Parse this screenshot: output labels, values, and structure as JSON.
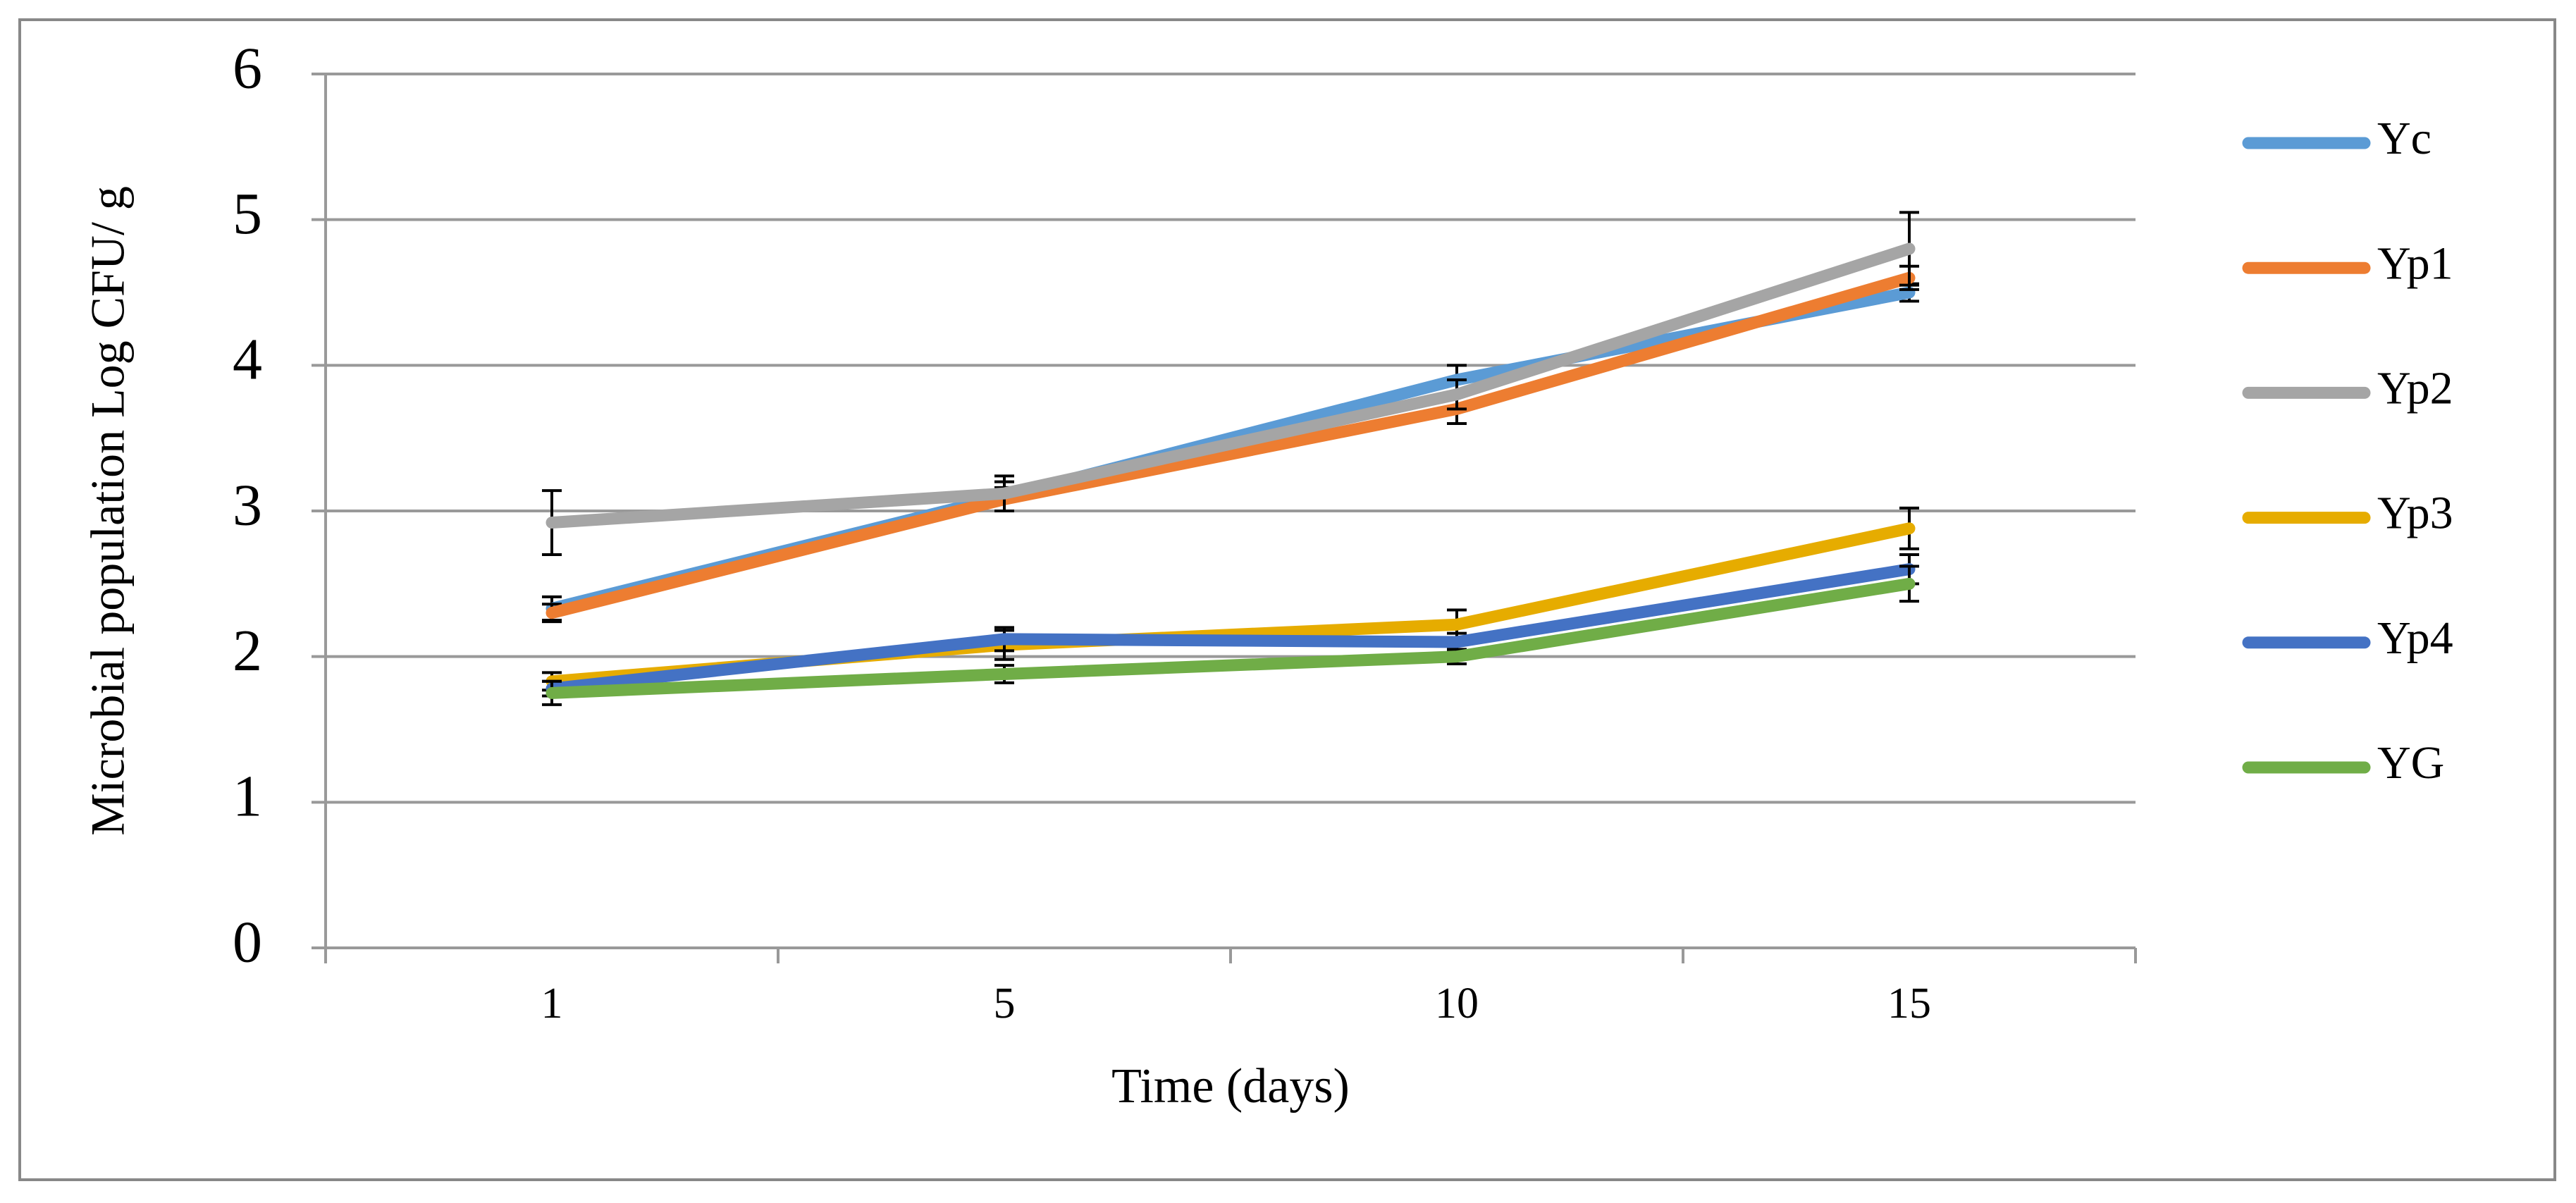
{
  "chart_data": {
    "type": "line",
    "y_label": "Microbial population Log CFU/ g",
    "x_label": "Time (days)",
    "categories": [
      "1",
      "5",
      "10",
      "15"
    ],
    "ylim": [
      0,
      6
    ],
    "yticks": [
      0,
      1,
      2,
      3,
      4,
      5,
      6
    ],
    "grid": true,
    "legend": "right",
    "series": [
      {
        "name": "Yc",
        "color": "#5b9bd5",
        "values": [
          2.33,
          3.1,
          3.9,
          4.5
        ],
        "errors": [
          0.08,
          0.1,
          0.1,
          0.06
        ]
      },
      {
        "name": "Yp1",
        "color": "#ed7d31",
        "values": [
          2.3,
          3.08,
          3.7,
          4.6
        ],
        "errors": [
          0.06,
          0.08,
          0.1,
          0.08
        ]
      },
      {
        "name": "Yp2",
        "color": "#a5a5a5",
        "values": [
          2.92,
          3.12,
          3.8,
          4.8
        ],
        "errors": [
          0.22,
          0.12,
          0.1,
          0.25
        ]
      },
      {
        "name": "Yp3",
        "color": "#e6ac00",
        "values": [
          1.83,
          2.08,
          2.22,
          2.88
        ],
        "errors": [
          0.06,
          0.1,
          0.1,
          0.14
        ]
      },
      {
        "name": "Yp4",
        "color": "#4472c4",
        "values": [
          1.78,
          2.12,
          2.1,
          2.6
        ],
        "errors": [
          0.05,
          0.08,
          0.06,
          0.1
        ]
      },
      {
        "name": "YG",
        "color": "#70ad47",
        "values": [
          1.75,
          1.88,
          2.0,
          2.5
        ],
        "errors": [
          0.08,
          0.06,
          0.05,
          0.12
        ]
      }
    ]
  }
}
